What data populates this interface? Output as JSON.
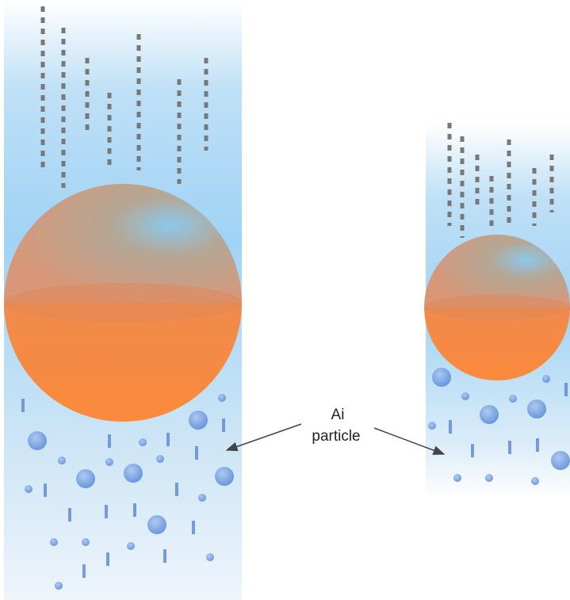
{
  "annotation": [
    "Ai",
    "particle"
  ]
}
